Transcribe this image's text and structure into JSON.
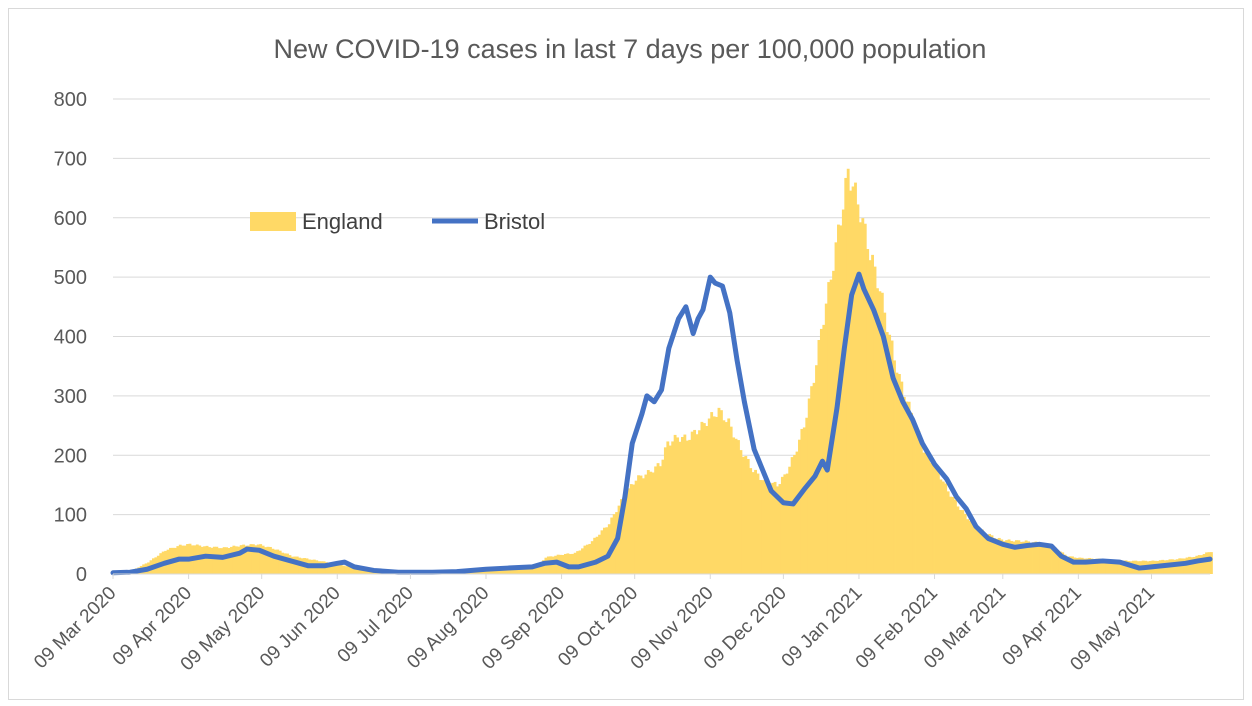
{
  "chart_data": {
    "type": "area",
    "title": "New COVID-19 cases in last 7 days per 100,000 population",
    "ylim": [
      0,
      800
    ],
    "yticks": [
      "0",
      "100",
      "200",
      "300",
      "400",
      "500",
      "600",
      "700",
      "800"
    ],
    "xlim": [
      "2020-03-09",
      "2021-06-02"
    ],
    "xticks": [
      "09 Mar 2020",
      "09 Apr 2020",
      "09 May 2020",
      "09 Jun 2020",
      "09 Jul 2020",
      "09 Aug 2020",
      "09 Sep 2020",
      "09 Oct 2020",
      "09 Nov 2020",
      "09 Dec 2020",
      "09 Jan 2021",
      "09 Feb 2021",
      "09 Mar 2021",
      "09 Apr 2021",
      "09 May 2021"
    ],
    "legend_position": "upper-left",
    "grid": true,
    "series": [
      {
        "name": "England",
        "style": "bars",
        "color": "#FFD966",
        "points": [
          [
            "2020-03-09",
            2
          ],
          [
            "2020-03-16",
            5
          ],
          [
            "2020-03-23",
            20
          ],
          [
            "2020-03-30",
            40
          ],
          [
            "2020-04-05",
            48
          ],
          [
            "2020-04-09",
            50
          ],
          [
            "2020-04-16",
            46
          ],
          [
            "2020-04-23",
            44
          ],
          [
            "2020-04-30",
            48
          ],
          [
            "2020-05-07",
            50
          ],
          [
            "2020-05-14",
            42
          ],
          [
            "2020-05-21",
            30
          ],
          [
            "2020-05-28",
            25
          ],
          [
            "2020-06-04",
            20
          ],
          [
            "2020-06-11",
            14
          ],
          [
            "2020-06-20",
            10
          ],
          [
            "2020-07-01",
            6
          ],
          [
            "2020-07-09",
            4
          ],
          [
            "2020-07-23",
            4
          ],
          [
            "2020-08-09",
            6
          ],
          [
            "2020-08-20",
            10
          ],
          [
            "2020-08-30",
            15
          ],
          [
            "2020-09-02",
            28
          ],
          [
            "2020-09-09",
            33
          ],
          [
            "2020-09-14",
            35
          ],
          [
            "2020-09-21",
            55
          ],
          [
            "2020-09-28",
            85
          ],
          [
            "2020-10-04",
            130
          ],
          [
            "2020-10-09",
            160
          ],
          [
            "2020-10-14",
            170
          ],
          [
            "2020-10-19",
            185
          ],
          [
            "2020-10-22",
            220
          ],
          [
            "2020-10-26",
            230
          ],
          [
            "2020-10-30",
            228
          ],
          [
            "2020-11-04",
            245
          ],
          [
            "2020-11-09",
            265
          ],
          [
            "2020-11-12",
            275
          ],
          [
            "2020-11-16",
            255
          ],
          [
            "2020-11-21",
            210
          ],
          [
            "2020-11-26",
            175
          ],
          [
            "2020-12-01",
            155
          ],
          [
            "2020-12-06",
            150
          ],
          [
            "2020-12-09",
            165
          ],
          [
            "2020-12-13",
            200
          ],
          [
            "2020-12-17",
            250
          ],
          [
            "2020-12-21",
            330
          ],
          [
            "2020-12-24",
            410
          ],
          [
            "2020-12-28",
            500
          ],
          [
            "2021-01-01",
            600
          ],
          [
            "2021-01-04",
            675
          ],
          [
            "2021-01-06",
            655
          ],
          [
            "2021-01-09",
            610
          ],
          [
            "2021-01-13",
            540
          ],
          [
            "2021-01-17",
            480
          ],
          [
            "2021-01-21",
            400
          ],
          [
            "2021-01-25",
            330
          ],
          [
            "2021-01-30",
            270
          ],
          [
            "2021-02-04",
            210
          ],
          [
            "2021-02-09",
            180
          ],
          [
            "2021-02-14",
            140
          ],
          [
            "2021-02-19",
            110
          ],
          [
            "2021-02-24",
            85
          ],
          [
            "2021-03-01",
            70
          ],
          [
            "2021-03-06",
            60
          ],
          [
            "2021-03-09",
            57
          ],
          [
            "2021-03-18",
            55
          ],
          [
            "2021-03-28",
            50
          ],
          [
            "2021-04-01",
            38
          ],
          [
            "2021-04-04",
            30
          ],
          [
            "2021-04-09",
            27
          ],
          [
            "2021-04-19",
            25
          ],
          [
            "2021-04-29",
            22
          ],
          [
            "2021-05-09",
            22
          ],
          [
            "2021-05-19",
            25
          ],
          [
            "2021-05-27",
            30
          ],
          [
            "2021-06-02",
            38
          ]
        ]
      },
      {
        "name": "Bristol",
        "style": "line",
        "color": "#4472C4",
        "points": [
          [
            "2020-03-09",
            2
          ],
          [
            "2020-03-16",
            3
          ],
          [
            "2020-03-23",
            8
          ],
          [
            "2020-03-30",
            18
          ],
          [
            "2020-04-05",
            25
          ],
          [
            "2020-04-09",
            25
          ],
          [
            "2020-04-16",
            30
          ],
          [
            "2020-04-23",
            28
          ],
          [
            "2020-04-30",
            35
          ],
          [
            "2020-05-03",
            42
          ],
          [
            "2020-05-08",
            40
          ],
          [
            "2020-05-14",
            30
          ],
          [
            "2020-05-21",
            22
          ],
          [
            "2020-05-28",
            14
          ],
          [
            "2020-06-04",
            14
          ],
          [
            "2020-06-09",
            18
          ],
          [
            "2020-06-12",
            20
          ],
          [
            "2020-06-16",
            12
          ],
          [
            "2020-06-24",
            6
          ],
          [
            "2020-07-04",
            3
          ],
          [
            "2020-07-18",
            3
          ],
          [
            "2020-07-28",
            4
          ],
          [
            "2020-08-09",
            8
          ],
          [
            "2020-08-18",
            10
          ],
          [
            "2020-08-28",
            12
          ],
          [
            "2020-09-02",
            18
          ],
          [
            "2020-09-07",
            20
          ],
          [
            "2020-09-12",
            12
          ],
          [
            "2020-09-16",
            12
          ],
          [
            "2020-09-23",
            20
          ],
          [
            "2020-09-28",
            30
          ],
          [
            "2020-10-02",
            60
          ],
          [
            "2020-10-05",
            130
          ],
          [
            "2020-10-08",
            220
          ],
          [
            "2020-10-12",
            270
          ],
          [
            "2020-10-14",
            300
          ],
          [
            "2020-10-17",
            290
          ],
          [
            "2020-10-20",
            310
          ],
          [
            "2020-10-23",
            380
          ],
          [
            "2020-10-27",
            430
          ],
          [
            "2020-10-30",
            450
          ],
          [
            "2020-11-02",
            405
          ],
          [
            "2020-11-04",
            430
          ],
          [
            "2020-11-06",
            445
          ],
          [
            "2020-11-09",
            500
          ],
          [
            "2020-11-11",
            490
          ],
          [
            "2020-11-14",
            485
          ],
          [
            "2020-11-17",
            440
          ],
          [
            "2020-11-20",
            360
          ],
          [
            "2020-11-23",
            290
          ],
          [
            "2020-11-27",
            210
          ],
          [
            "2020-12-01",
            170
          ],
          [
            "2020-12-04",
            140
          ],
          [
            "2020-12-09",
            120
          ],
          [
            "2020-12-13",
            118
          ],
          [
            "2020-12-18",
            145
          ],
          [
            "2020-12-22",
            165
          ],
          [
            "2020-12-25",
            190
          ],
          [
            "2020-12-27",
            175
          ],
          [
            "2020-12-31",
            280
          ],
          [
            "2021-01-03",
            380
          ],
          [
            "2021-01-06",
            470
          ],
          [
            "2021-01-09",
            505
          ],
          [
            "2021-01-11",
            480
          ],
          [
            "2021-01-15",
            445
          ],
          [
            "2021-01-19",
            400
          ],
          [
            "2021-01-23",
            330
          ],
          [
            "2021-01-27",
            290
          ],
          [
            "2021-01-31",
            260
          ],
          [
            "2021-02-04",
            220
          ],
          [
            "2021-02-09",
            185
          ],
          [
            "2021-02-14",
            160
          ],
          [
            "2021-02-18",
            130
          ],
          [
            "2021-02-22",
            110
          ],
          [
            "2021-02-26",
            80
          ],
          [
            "2021-03-03",
            60
          ],
          [
            "2021-03-09",
            50
          ],
          [
            "2021-03-14",
            45
          ],
          [
            "2021-03-19",
            48
          ],
          [
            "2021-03-24",
            50
          ],
          [
            "2021-03-29",
            47
          ],
          [
            "2021-04-02",
            30
          ],
          [
            "2021-04-07",
            20
          ],
          [
            "2021-04-12",
            20
          ],
          [
            "2021-04-19",
            22
          ],
          [
            "2021-04-26",
            20
          ],
          [
            "2021-05-04",
            10
          ],
          [
            "2021-05-09",
            12
          ],
          [
            "2021-05-16",
            15
          ],
          [
            "2021-05-23",
            18
          ],
          [
            "2021-05-28",
            22
          ],
          [
            "2021-06-02",
            25
          ]
        ]
      }
    ]
  }
}
